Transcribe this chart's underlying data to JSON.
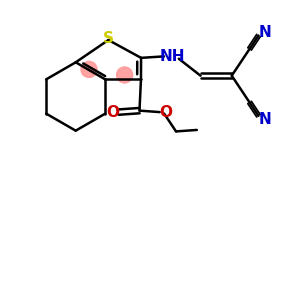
{
  "bg_color": "#ffffff",
  "S_color": "#cccc00",
  "N_color": "#0000cc",
  "O_color": "#cc0000",
  "C_color": "#000000",
  "highlight_color": "#ff9999",
  "fig_size": [
    3.0,
    3.0
  ],
  "dpi": 100,
  "xlim": [
    0,
    10
  ],
  "ylim": [
    0,
    10
  ],
  "lw": 1.8,
  "fs": 11
}
